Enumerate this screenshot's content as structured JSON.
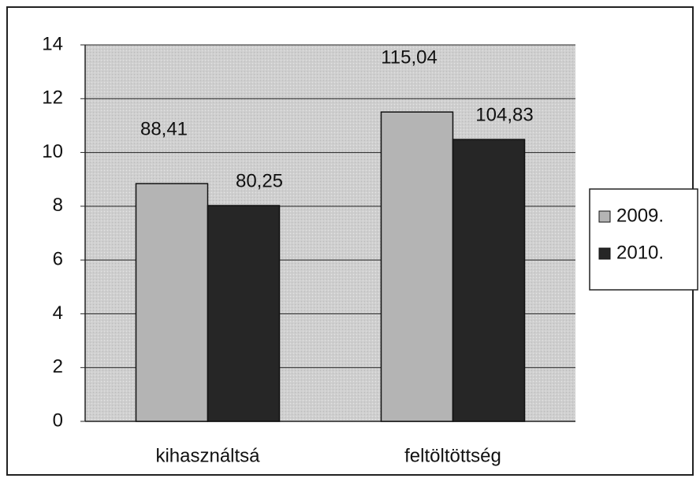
{
  "chart_data": {
    "type": "bar",
    "categories": [
      "kihasználtsá",
      "feltöltöttség"
    ],
    "series": [
      {
        "name": "2009.",
        "color": "#b4b4b4",
        "values": [
          8.841,
          11.504
        ],
        "value_labels": [
          "88,41",
          "115,04"
        ]
      },
      {
        "name": "2010.",
        "color": "#262626",
        "values": [
          8.025,
          10.483
        ],
        "value_labels": [
          "80,25",
          "104,83"
        ]
      }
    ],
    "ylim": [
      0,
      14
    ],
    "yticks": [
      0,
      2,
      4,
      6,
      8,
      10,
      12,
      14
    ],
    "grid": true,
    "legend": "right"
  }
}
